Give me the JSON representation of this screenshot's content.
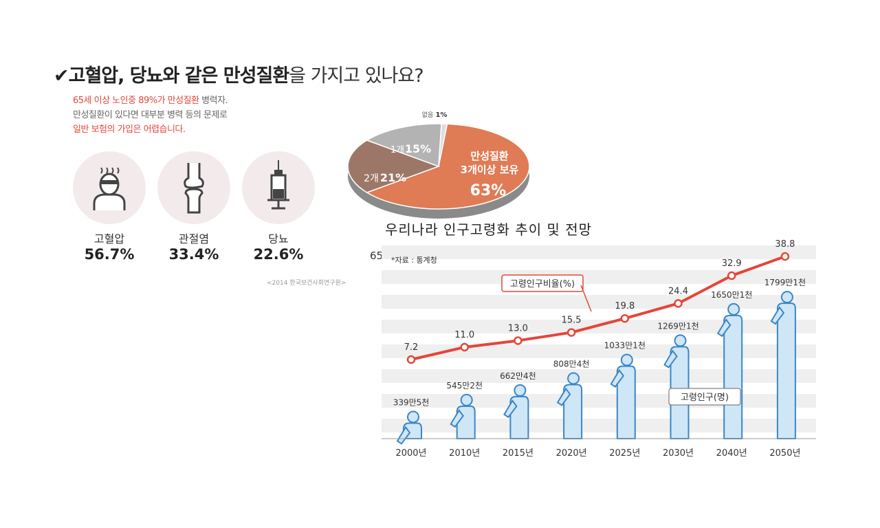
{
  "headline": {
    "check": "✔",
    "bold": "고혈압, 당뇨와 같은 만성질환",
    "rest": "을 가지고 있나요?"
  },
  "intro": {
    "line1_red": "65세 이상 노인중 89%가 만성질환",
    "line1_grey": " 병력자.",
    "line2": "만성질환이 있다면 대부분 병력 등의 문제로",
    "line3_red": "일반 보험의 가입은 어렵습니다."
  },
  "diseases": [
    {
      "name": "고혈압",
      "pct": "56.7%",
      "icon": "patient-with-headache-icon"
    },
    {
      "name": "관절염",
      "pct": "33.4%",
      "icon": "knee-joint-icon"
    },
    {
      "name": "당뇨",
      "pct": "22.6%",
      "icon": "insulin-syringe-icon"
    }
  ],
  "source1": "<2014 한국보건사회연구원>",
  "cut_text": "65",
  "chart_data": [
    {
      "type": "pie",
      "title": "",
      "slices": [
        {
          "label_top": "만성질환",
          "label_mid": "3개이상 보유",
          "value": 63,
          "value_text": "63%",
          "color": "#df7b55"
        },
        {
          "label_top": "2개",
          "value": 21,
          "value_text": "21%",
          "color": "#9c7767"
        },
        {
          "label_top": "1개",
          "value": 15,
          "value_text": "15%",
          "color": "#b3b3b3"
        },
        {
          "label_top": "없음",
          "value": 1,
          "value_text": "1%",
          "color": "#dddddd"
        }
      ]
    },
    {
      "type": "line",
      "title": "우리나라 인구고령화 추이 및 전망",
      "source": "*자료 : 통계청",
      "categories": [
        "2000년",
        "2010년",
        "2015년",
        "2020년",
        "2025년",
        "2030년",
        "2040년",
        "2050년"
      ],
      "series": [
        {
          "name": "고령인구비율(%)",
          "values": [
            7.2,
            11.0,
            13.0,
            15.5,
            19.8,
            24.4,
            32.9,
            38.8
          ],
          "labels": [
            "7.2",
            "11.0",
            "13.0",
            "15.5",
            "19.8",
            "24.4",
            "32.9",
            "38.8"
          ],
          "color": "#e4463a"
        },
        {
          "name": "고령인구(명)",
          "values": [
            3395000,
            5452000,
            6624000,
            8084000,
            10331000,
            12691000,
            16501000,
            17991000
          ],
          "labels": [
            "339만5천",
            "545만2천",
            "662만4천",
            "808만4천",
            "1033만1천",
            "1269만1천",
            "1650만1천",
            "1799만1천"
          ],
          "color": "#4a90c8"
        }
      ],
      "grid": "horizontal bands"
    }
  ]
}
